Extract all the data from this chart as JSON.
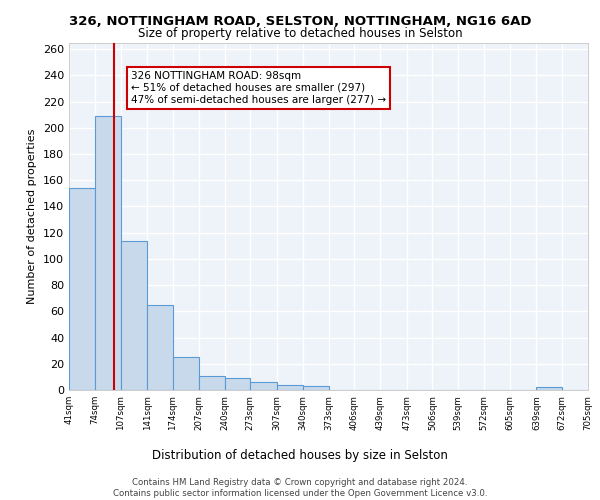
{
  "title1": "326, NOTTINGHAM ROAD, SELSTON, NOTTINGHAM, NG16 6AD",
  "title2": "Size of property relative to detached houses in Selston",
  "xlabel": "Distribution of detached houses by size in Selston",
  "ylabel": "Number of detached properties",
  "bar_edges": [
    41,
    74,
    107,
    141,
    174,
    207,
    240,
    273,
    307,
    340,
    373,
    406,
    439,
    473,
    506,
    539,
    572,
    605,
    639,
    672,
    705
  ],
  "bar_heights": [
    154,
    209,
    114,
    65,
    25,
    11,
    9,
    6,
    4,
    3,
    0,
    0,
    0,
    0,
    0,
    0,
    0,
    0,
    2,
    0,
    0
  ],
  "bar_color": "#c8d9eb",
  "bar_edge_color": "#5b9bd5",
  "background_color": "#eef3f9",
  "grid_color": "#ffffff",
  "red_line_x": 98,
  "annotation_text": "326 NOTTINGHAM ROAD: 98sqm\n← 51% of detached houses are smaller (297)\n47% of semi-detached houses are larger (277) →",
  "annotation_box_color": "#ffffff",
  "annotation_border_color": "#cc0000",
  "tick_labels": [
    "41sqm",
    "74sqm",
    "107sqm",
    "141sqm",
    "174sqm",
    "207sqm",
    "240sqm",
    "273sqm",
    "307sqm",
    "340sqm",
    "373sqm",
    "406sqm",
    "439sqm",
    "473sqm",
    "506sqm",
    "539sqm",
    "572sqm",
    "605sqm",
    "639sqm",
    "672sqm",
    "705sqm"
  ],
  "yticks": [
    0,
    20,
    40,
    60,
    80,
    100,
    120,
    140,
    160,
    180,
    200,
    220,
    240,
    260
  ],
  "ylim": [
    0,
    265
  ],
  "footer": "Contains HM Land Registry data © Crown copyright and database right 2024.\nContains public sector information licensed under the Open Government Licence v3.0."
}
